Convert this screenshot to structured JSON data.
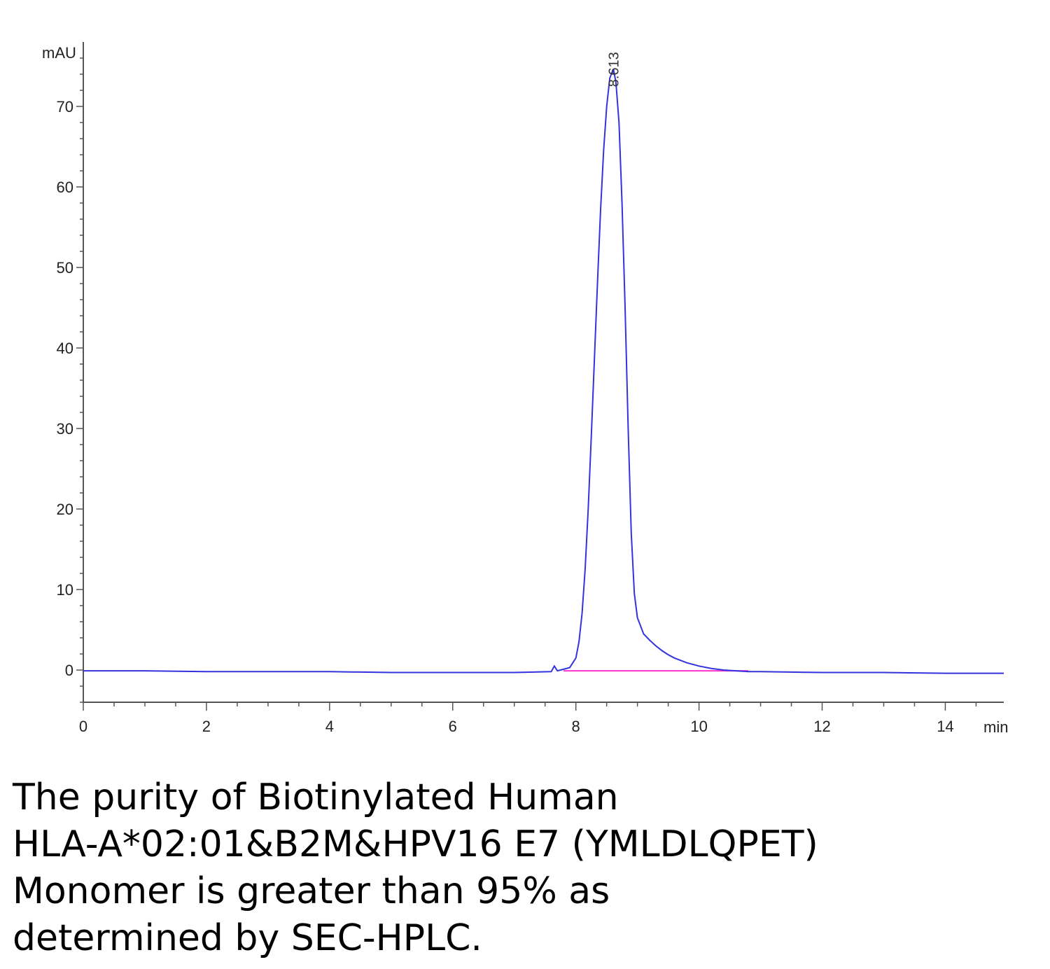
{
  "chart_data": {
    "type": "line",
    "title": "",
    "ylabel": "mAU",
    "xlabel": "min",
    "xlim": [
      0,
      14.95
    ],
    "ylim": [
      -4,
      78
    ],
    "xticks": [
      0,
      2,
      4,
      6,
      8,
      10,
      12,
      14
    ],
    "yticks": [
      0,
      10,
      20,
      30,
      40,
      50,
      60,
      70
    ],
    "peak_label": "8.613",
    "peak_x": 8.613,
    "baseline": {
      "x": [
        7.8,
        10.8
      ],
      "y": [
        -0.1,
        -0.1
      ],
      "color": "#ff33cc"
    },
    "series": [
      {
        "color": "#3333dd",
        "x": [
          0,
          1,
          2,
          3,
          4,
          5,
          6,
          7,
          7.6,
          7.65,
          7.7,
          7.8,
          7.9,
          8.0,
          8.05,
          8.1,
          8.15,
          8.2,
          8.25,
          8.3,
          8.35,
          8.4,
          8.45,
          8.5,
          8.55,
          8.6,
          8.613,
          8.65,
          8.7,
          8.75,
          8.8,
          8.85,
          8.9,
          8.95,
          9.0,
          9.1,
          9.2,
          9.3,
          9.4,
          9.5,
          9.6,
          9.8,
          10.0,
          10.2,
          10.4,
          10.6,
          10.8,
          11.0,
          12.0,
          13.0,
          14.0,
          14.5,
          14.95
        ],
        "y": [
          -0.1,
          -0.1,
          -0.2,
          -0.2,
          -0.2,
          -0.3,
          -0.3,
          -0.3,
          -0.2,
          0.5,
          -0.1,
          0.1,
          0.3,
          1.5,
          3.5,
          7.0,
          12.5,
          20.0,
          29.0,
          38.5,
          48.0,
          57.0,
          64.5,
          70.0,
          73.5,
          74.5,
          74.5,
          73.0,
          68.0,
          58.0,
          45.0,
          30.0,
          17.0,
          9.5,
          6.5,
          4.5,
          3.7,
          3.0,
          2.4,
          1.9,
          1.5,
          0.9,
          0.5,
          0.2,
          0.0,
          -0.1,
          -0.2,
          -0.2,
          -0.3,
          -0.3,
          -0.4,
          -0.4,
          -0.4
        ]
      }
    ]
  },
  "caption": {
    "line1": "The purity of Biotinylated Human",
    "line2": "HLA-A*02:01&B2M&HPV16 E7 (YMLDLQPET)",
    "line3": "Monomer is greater than 95% as",
    "line4": "determined by SEC-HPLC."
  }
}
